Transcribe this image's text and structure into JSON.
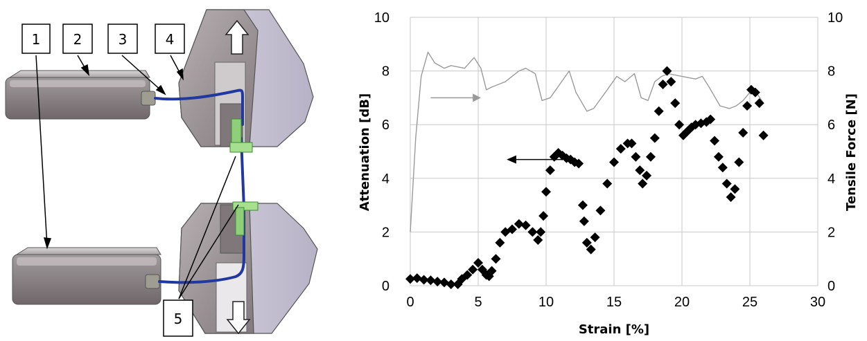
{
  "setup_labels": [
    "1",
    "2",
    "3",
    "4",
    "5"
  ],
  "chart_data": {
    "type": "scatter",
    "xlabel": "Strain [%]",
    "ylabel": "Attenuation [dB]",
    "y2label": "Tensile Force [N]",
    "xlim": [
      0,
      30
    ],
    "ylim": [
      0,
      10
    ],
    "y2lim": [
      0,
      10
    ],
    "x_ticks": [
      "0",
      "5",
      "10",
      "15",
      "20",
      "25",
      "30"
    ],
    "y_ticks": [
      "0",
      "2",
      "4",
      "6",
      "8",
      "10"
    ],
    "y2_ticks": [
      "0",
      "2",
      "4",
      "6",
      "8",
      "10"
    ],
    "grid": true,
    "colors": {
      "attenuation": "#000000",
      "force": "#9a9a9a"
    },
    "series": [
      {
        "axis": "left",
        "marker": "diamond",
        "x": [
          0.0,
          0.5,
          1.0,
          1.5,
          2.0,
          2.5,
          3.0,
          3.5,
          3.8,
          4.2,
          4.6,
          5.0,
          5.3,
          5.6,
          5.8,
          6.0,
          6.3,
          6.6,
          7.0,
          7.5,
          8.0,
          8.5,
          9.0,
          9.4,
          9.6,
          9.8,
          10.0,
          10.3,
          10.6,
          10.9,
          11.2,
          11.5,
          11.8,
          12.1,
          12.4,
          12.7,
          12.8,
          13.0,
          13.3,
          13.6,
          14.0,
          14.5,
          15.0,
          15.5,
          16.0,
          16.3,
          16.6,
          16.9,
          17.1,
          17.4,
          17.7,
          18.0,
          18.3,
          18.6,
          18.9,
          19.2,
          19.5,
          19.8,
          20.1,
          20.4,
          20.7,
          21.0,
          21.4,
          21.8,
          22.1,
          22.4,
          22.7,
          23.0,
          23.3,
          23.6,
          23.9,
          24.2,
          24.5,
          24.8,
          25.1,
          25.4,
          25.7,
          26.0
        ],
        "y": [
          0.25,
          0.28,
          0.22,
          0.2,
          0.15,
          0.12,
          0.05,
          0.05,
          0.25,
          0.4,
          0.6,
          0.85,
          0.6,
          0.4,
          0.35,
          0.55,
          1.0,
          1.6,
          2.0,
          2.1,
          2.3,
          2.25,
          2.0,
          1.7,
          2.0,
          2.6,
          3.5,
          4.3,
          4.8,
          4.95,
          4.85,
          4.75,
          4.7,
          4.6,
          4.55,
          3.0,
          2.4,
          1.6,
          1.35,
          1.8,
          2.8,
          3.8,
          4.6,
          5.1,
          5.3,
          5.3,
          4.8,
          4.3,
          3.8,
          4.1,
          4.8,
          5.5,
          6.5,
          7.5,
          8.0,
          7.6,
          6.8,
          6.0,
          5.6,
          5.75,
          5.9,
          6.0,
          6.05,
          6.1,
          6.2,
          5.4,
          4.8,
          4.4,
          3.8,
          3.3,
          3.6,
          4.6,
          5.7,
          6.7,
          7.3,
          7.2,
          6.8,
          5.6
        ]
      },
      {
        "axis": "right",
        "marker": "none",
        "x": [
          0.0,
          0.4,
          0.8,
          1.3,
          1.8,
          2.5,
          3.0,
          4.0,
          4.7,
          5.2,
          5.6,
          6.0,
          7.0,
          8.0,
          8.5,
          9.2,
          9.7,
          10.3,
          11.0,
          11.7,
          12.2,
          13.0,
          13.5,
          14.5,
          15.2,
          15.8,
          16.5,
          17.0,
          17.5,
          18.0,
          18.5,
          19.0,
          20.0,
          21.0,
          21.5,
          22.0,
          22.8,
          23.5,
          24.0,
          24.5,
          25.0,
          25.6,
          26.0
        ],
        "y": [
          2.0,
          5.5,
          7.8,
          8.7,
          8.3,
          8.1,
          8.2,
          8.1,
          8.5,
          8.1,
          7.3,
          7.4,
          7.6,
          8.0,
          8.1,
          7.9,
          6.9,
          7.0,
          7.5,
          8.0,
          7.2,
          6.5,
          6.6,
          7.3,
          7.8,
          7.6,
          7.9,
          7.0,
          6.9,
          7.6,
          7.8,
          7.9,
          7.8,
          7.7,
          7.8,
          7.4,
          6.7,
          6.6,
          6.7,
          6.9,
          7.2,
          7.1,
          6.8
        ]
      }
    ]
  }
}
